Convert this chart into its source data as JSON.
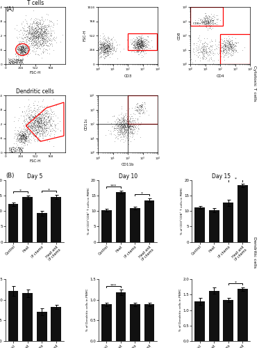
{
  "panel_A_label": "(A)",
  "panel_B_label": "(B)",
  "day_titles": [
    "Day 5",
    "Day 10",
    "Day 15"
  ],
  "categories": [
    "Control",
    "Heat",
    "IP chemo",
    "Heat and IP chemo"
  ],
  "tcell_ylabel": "% of CD3⁺CD8⁺ T cells in PBMC",
  "dc_ylabel": "% of Dendritic cells in PBMC",
  "right_label_top": "Cytotoxic T cells",
  "right_label_bottom": "Dendritic cells",
  "tcell_values": {
    "day5": [
      12.2,
      14.5,
      9.3,
      14.6
    ],
    "day10": [
      10.3,
      16.1,
      11.0,
      13.5
    ],
    "day15": [
      11.2,
      10.3,
      12.7,
      18.3
    ]
  },
  "tcell_errors": {
    "day5": [
      0.5,
      0.6,
      0.8,
      0.7
    ],
    "day10": [
      0.4,
      0.5,
      0.4,
      0.6
    ],
    "day15": [
      0.5,
      0.6,
      1.0,
      0.5
    ]
  },
  "dc_values": {
    "day5": [
      1.21,
      1.16,
      0.71,
      0.82
    ],
    "day10": [
      0.89,
      1.18,
      0.89,
      0.89
    ],
    "day15": [
      1.28,
      1.63,
      1.33,
      1.68
    ]
  },
  "dc_errors": {
    "day5": [
      0.12,
      0.09,
      0.09,
      0.05
    ],
    "day10": [
      0.04,
      0.06,
      0.04,
      0.04
    ],
    "day15": [
      0.12,
      0.1,
      0.06,
      0.06
    ]
  },
  "tcell_ylim": {
    "day5": [
      0,
      20
    ],
    "day10": [
      0,
      20
    ],
    "day15": [
      0,
      20
    ]
  },
  "dc_ylim": {
    "day5": [
      0,
      1.5
    ],
    "day10": [
      0,
      1.5
    ],
    "day15": [
      0,
      2.0
    ]
  },
  "tcell_yticks": {
    "day5": [
      0,
      5,
      10,
      15,
      20
    ],
    "day10": [
      0,
      5,
      10,
      15,
      20
    ],
    "day15": [
      0,
      5,
      10,
      15,
      20
    ]
  },
  "dc_yticks": {
    "day5": [
      0.0,
      0.5,
      1.0,
      1.5
    ],
    "day10": [
      0.0,
      0.5,
      1.0,
      1.5
    ],
    "day15": [
      0.0,
      0.5,
      1.0,
      1.5,
      2.0
    ]
  },
  "bar_color": "#111111",
  "significance_tcell": {
    "day5": [
      [
        0,
        1,
        "*"
      ],
      [
        2,
        3,
        "*"
      ]
    ],
    "day10": [
      [
        0,
        1,
        "***"
      ],
      [
        2,
        3,
        "*"
      ]
    ],
    "day15": [
      [
        2,
        3,
        "*"
      ]
    ]
  },
  "significance_dc": {
    "day5": [],
    "day10": [
      [
        0,
        1,
        "***"
      ]
    ],
    "day15": [
      [
        2,
        3,
        "*"
      ]
    ]
  }
}
